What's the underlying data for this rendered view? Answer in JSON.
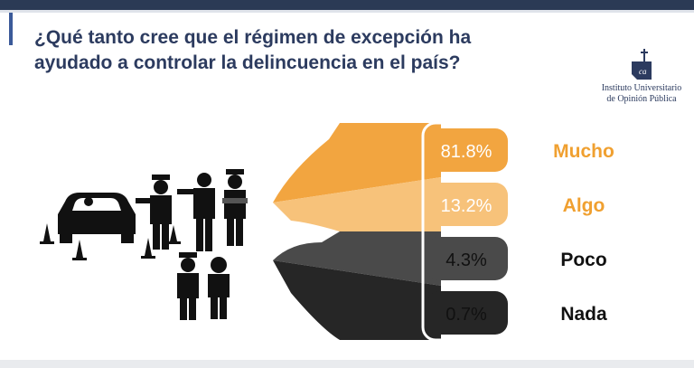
{
  "header": {
    "title_line1": "¿Qué tanto cree que el régimen de excepción ha",
    "title_line2": "ayudado a controlar la delincuencia en el país?"
  },
  "logo": {
    "name_line1": "Instituto Universitario",
    "name_line2": "de Opinión Pública",
    "mark_text": "ca"
  },
  "chart_data": {
    "type": "bar",
    "title": "¿Qué tanto cree que el régimen de excepción ha ayudado a controlar la delincuencia en el país?",
    "categories": [
      "Mucho",
      "Algo",
      "Poco",
      "Nada"
    ],
    "values": [
      81.8,
      13.2,
      4.3,
      0.7
    ],
    "value_labels": [
      "81.8%",
      "13.2%",
      "4.3%",
      "0.7%"
    ],
    "colors": {
      "Mucho": "#f2a540",
      "Algo": "#f7c27a",
      "Poco": "#4a4a4a",
      "Nada": "#262626"
    },
    "label_colors": [
      "#f0a030",
      "#f0a030",
      "#111111",
      "#111111"
    ],
    "value_text_colors": [
      "#ffffff",
      "#ffffff",
      "#111111",
      "#111111"
    ]
  }
}
